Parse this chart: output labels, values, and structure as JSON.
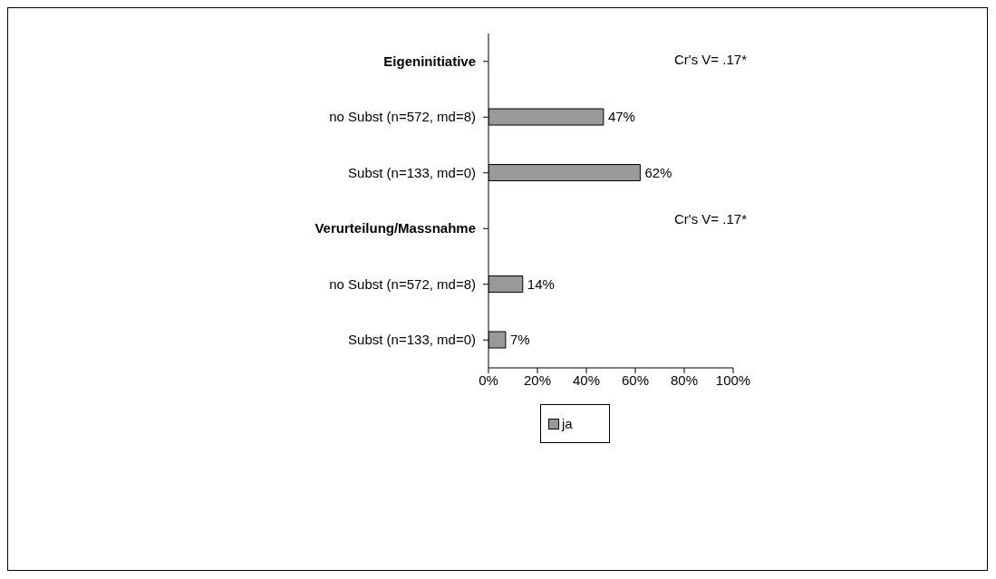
{
  "chart_data": {
    "type": "bar",
    "orientation": "horizontal",
    "categories": [
      "Eigeninitiative",
      "no Subst (n=572, md=8)",
      "Subst (n=133, md=0)",
      "Verurteilung/Massnahme",
      "no Subst (n=572, md=8)",
      "Subst (n=133, md=0)"
    ],
    "series": [
      {
        "name": "ja",
        "color": "#999999",
        "values": [
          null,
          47,
          62,
          null,
          14,
          7
        ],
        "value_labels": [
          null,
          "47%",
          "62%",
          null,
          "14%",
          "7%"
        ]
      }
    ],
    "xlim": [
      0,
      100
    ],
    "xticks": [
      {
        "value": 0,
        "label": "0%"
      },
      {
        "value": 20,
        "label": "20%"
      },
      {
        "value": 40,
        "label": "40%"
      },
      {
        "value": 60,
        "label": "60%"
      },
      {
        "value": 80,
        "label": "80%"
      },
      {
        "value": 100,
        "label": "100%"
      }
    ],
    "annotations": [
      "Cr's V= .17*",
      "Cr's V= .17*"
    ],
    "legend": "bottom",
    "grid": false
  }
}
